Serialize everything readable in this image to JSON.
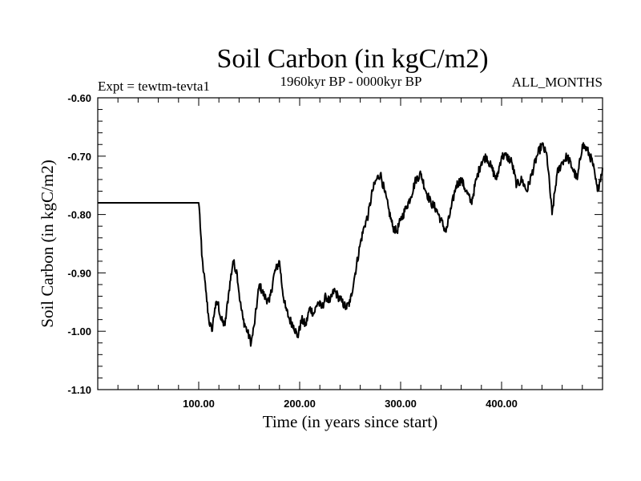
{
  "chart_data": {
    "type": "line",
    "title": "Soil Carbon (in kgC/m2)",
    "subtitle": "1960kyr BP - 0000kyr BP",
    "experiment": "Expt = tewtm-tevta1",
    "months": "ALL_MONTHS",
    "xlabel": "Time (in years since start)",
    "ylabel": "Soil Carbon (in kgC/m2)",
    "xlim": [
      0,
      500
    ],
    "ylim": [
      -1.1,
      -0.6
    ],
    "x_major_ticks": [
      100,
      200,
      300,
      400
    ],
    "x_tick_labels": [
      "100.00",
      "200.00",
      "300.00",
      "400.00"
    ],
    "x_minor_step": 20,
    "y_major_ticks": [
      -0.6,
      -0.7,
      -0.8,
      -0.9,
      -1.0,
      -1.1
    ],
    "y_tick_labels": [
      "-0.60",
      "-0.70",
      "-0.80",
      "-0.90",
      "-1.00",
      "-1.10"
    ],
    "y_minor_step": 0.02,
    "series": [
      {
        "name": "Soil Carbon",
        "color": "#000000",
        "x": [
          0,
          100,
          101,
          103,
          105,
          107,
          110,
          113,
          116,
          119,
          122,
          126,
          130,
          134,
          138,
          141,
          144,
          148,
          152,
          155,
          160,
          165,
          170,
          175,
          180,
          183,
          186,
          190,
          194,
          198,
          202,
          206,
          210,
          214,
          218,
          222,
          226,
          230,
          234,
          238,
          242,
          246,
          250,
          255,
          260,
          264,
          268,
          272,
          276,
          280,
          284,
          288,
          292,
          296,
          300,
          305,
          310,
          315,
          320,
          325,
          330,
          335,
          340,
          345,
          350,
          355,
          360,
          365,
          370,
          375,
          380,
          385,
          390,
          395,
          400,
          405,
          410,
          415,
          420,
          425,
          430,
          435,
          440,
          445,
          450,
          455,
          460,
          465,
          470,
          475,
          480,
          485,
          490,
          495,
          500
        ],
        "values": [
          -0.78,
          -0.78,
          -0.8,
          -0.87,
          -0.9,
          -0.93,
          -0.98,
          -1.0,
          -0.96,
          -0.95,
          -0.98,
          -0.99,
          -0.93,
          -0.88,
          -0.9,
          -0.95,
          -0.98,
          -1.0,
          -1.02,
          -0.99,
          -0.92,
          -0.94,
          -0.95,
          -0.9,
          -0.88,
          -0.93,
          -0.96,
          -0.98,
          -0.99,
          -1.01,
          -0.98,
          -0.99,
          -0.96,
          -0.97,
          -0.95,
          -0.96,
          -0.94,
          -0.95,
          -0.93,
          -0.94,
          -0.95,
          -0.96,
          -0.95,
          -0.9,
          -0.85,
          -0.82,
          -0.8,
          -0.76,
          -0.74,
          -0.73,
          -0.76,
          -0.79,
          -0.82,
          -0.83,
          -0.81,
          -0.79,
          -0.77,
          -0.74,
          -0.73,
          -0.76,
          -0.78,
          -0.79,
          -0.81,
          -0.83,
          -0.79,
          -0.75,
          -0.74,
          -0.76,
          -0.78,
          -0.74,
          -0.71,
          -0.7,
          -0.72,
          -0.74,
          -0.7,
          -0.7,
          -0.71,
          -0.75,
          -0.74,
          -0.76,
          -0.73,
          -0.7,
          -0.68,
          -0.7,
          -0.8,
          -0.73,
          -0.71,
          -0.7,
          -0.72,
          -0.74,
          -0.68,
          -0.69,
          -0.71,
          -0.76,
          -0.72
        ]
      }
    ]
  }
}
